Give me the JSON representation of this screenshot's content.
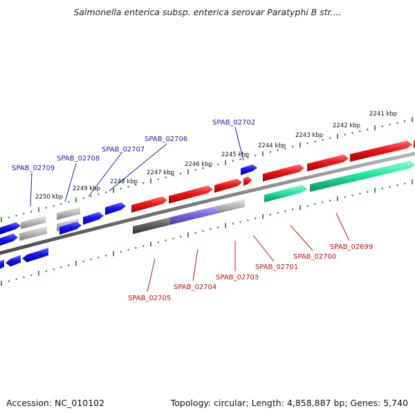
{
  "title": "Salmonella enterica subsp. enterica serovar Paratyphi B str....",
  "footer": {
    "accession": "Accession: NC_010102",
    "summary": "Topology: circular; Length: 4,858,887 bp; Genes: 5,740"
  },
  "kbp_ticks": [
    "2250 kbp",
    "2249 kbp",
    "2248 kbp",
    "2247 kbp",
    "2246 kbp",
    "2245 kbp",
    "2244 kbp",
    "2243 kbp",
    "2242 kbp",
    "2241 kbp"
  ],
  "genes_top_labels": [
    "SPAB_02709",
    "SPAB_02708",
    "SPAB_02707",
    "SPAB_02706",
    "SPAB_02702"
  ],
  "genes_bottom_labels": [
    "SPAB_02705",
    "SPAB_02704",
    "SPAB_02703",
    "SPAB_02701",
    "SPAB_02700",
    "SPAB_02699"
  ],
  "colors": {
    "forward_cds": "#1010e0",
    "reverse_cds": "#e01010",
    "rna": "#20e090",
    "pseudo": "#b0b0b0",
    "dark": "#606060",
    "purple": "#7a70d8",
    "backbone": "#808080",
    "tick": "#2a8a2a",
    "label_top": "#1a1aa8",
    "label_bottom": "#c01010"
  }
}
